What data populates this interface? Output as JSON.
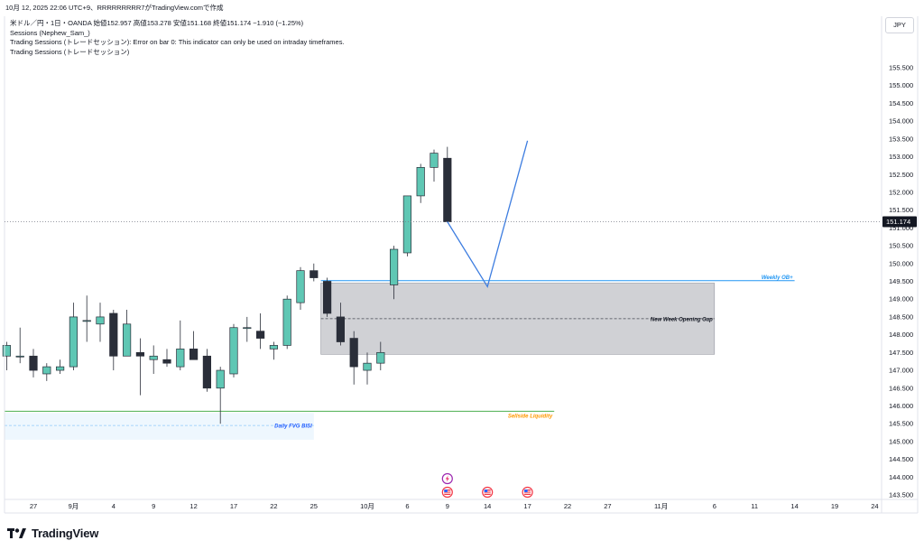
{
  "header": {
    "title": "10月 12, 2025 22:06 UTC+9、RRRRRRRRR7がTradingView.comで作成"
  },
  "info_lines": [
    "米ドル／円・1日・OANDA  始値152.957  高値153.278  安値151.168  終値151.174  −1.910 (−1.25%)",
    "Sessions (Nephew_Sam_)",
    "Trading Sessions (トレードセッション): Error on bar 0: This indicator can only be used on intraday timeframes.",
    "Trading Sessions (トレードセッション)"
  ],
  "currency": "JPY",
  "brand": {
    "name": "TradingView",
    "logo_icon": "tradingview-logo-icon"
  },
  "chart_data": {
    "type": "candlestick",
    "title": "",
    "price_axis": {
      "ylim": [
        143.3,
        156.1
      ],
      "ticks": [
        155.5,
        155.0,
        154.5,
        154.0,
        153.5,
        153.0,
        152.5,
        152.0,
        151.5,
        151.0,
        150.5,
        150.0,
        149.5,
        149.0,
        148.5,
        148.0,
        147.5,
        147.0,
        146.5,
        146.0,
        145.5,
        145.0,
        144.5,
        144.0,
        143.5
      ],
      "tick_labels": [
        "155.500",
        "155.000",
        "154.500",
        "154.000",
        "153.500",
        "153.000",
        "152.500",
        "152.000",
        "151.500",
        "151.000",
        "150.500",
        "150.000",
        "149.500",
        "149.000",
        "148.500",
        "148.000",
        "147.500",
        "147.000",
        "146.500",
        "146.000",
        "145.500",
        "145.000",
        "144.500",
        "144.000",
        "143.500"
      ],
      "last_price": 151.174,
      "last_price_label": "151.174"
    },
    "time_axis": {
      "dates": [
        "2025-08-27",
        "2025-09-01",
        "2025-09-04",
        "2025-09-09",
        "2025-09-12",
        "2025-09-17",
        "2025-09-22",
        "2025-09-25",
        "2025-10-01",
        "2025-10-06",
        "2025-10-09",
        "2025-10-14",
        "2025-10-17",
        "2025-10-22",
        "2025-10-27",
        "2025-11-01",
        "2025-11-06",
        "2025-11-11",
        "2025-11-14",
        "2025-11-19",
        "2025-11-24"
      ],
      "labels": [
        "27",
        "9月",
        "4",
        "9",
        "12",
        "17",
        "22",
        "25",
        "10月",
        "6",
        "9",
        "14",
        "17",
        "22",
        "27",
        "11月",
        "6",
        "11",
        "14",
        "19",
        "24"
      ]
    },
    "candles": [
      {
        "date": "2025-08-22",
        "open": 147.0,
        "high": 148.5,
        "low": 146.9,
        "close": 147.7
      },
      {
        "date": "2025-08-25",
        "open": 147.4,
        "high": 147.8,
        "low": 147.0,
        "close": 147.7
      },
      {
        "date": "2025-08-26",
        "open": 147.4,
        "high": 148.2,
        "low": 147.2,
        "close": 147.4
      },
      {
        "date": "2025-08-27",
        "open": 147.4,
        "high": 147.6,
        "low": 146.8,
        "close": 147.0
      },
      {
        "date": "2025-08-28",
        "open": 146.9,
        "high": 147.2,
        "low": 146.7,
        "close": 147.1
      },
      {
        "date": "2025-08-29",
        "open": 147.0,
        "high": 147.3,
        "low": 146.9,
        "close": 147.1
      },
      {
        "date": "2025-09-01",
        "open": 147.1,
        "high": 148.9,
        "low": 147.0,
        "close": 148.5
      },
      {
        "date": "2025-09-02",
        "open": 148.4,
        "high": 149.1,
        "low": 147.8,
        "close": 148.4
      },
      {
        "date": "2025-09-03",
        "open": 148.3,
        "high": 148.9,
        "low": 147.8,
        "close": 148.5
      },
      {
        "date": "2025-09-04",
        "open": 148.6,
        "high": 148.7,
        "low": 147.0,
        "close": 147.4
      },
      {
        "date": "2025-09-05",
        "open": 147.4,
        "high": 148.7,
        "low": 147.4,
        "close": 148.3
      },
      {
        "date": "2025-09-08",
        "open": 147.5,
        "high": 147.9,
        "low": 146.3,
        "close": 147.4
      },
      {
        "date": "2025-09-09",
        "open": 147.3,
        "high": 147.7,
        "low": 146.9,
        "close": 147.4
      },
      {
        "date": "2025-09-10",
        "open": 147.3,
        "high": 147.6,
        "low": 147.1,
        "close": 147.2
      },
      {
        "date": "2025-09-11",
        "open": 147.1,
        "high": 148.4,
        "low": 147.0,
        "close": 147.6
      },
      {
        "date": "2025-09-12",
        "open": 147.6,
        "high": 148.1,
        "low": 147.3,
        "close": 147.3
      },
      {
        "date": "2025-09-15",
        "open": 147.4,
        "high": 147.6,
        "low": 146.4,
        "close": 146.5
      },
      {
        "date": "2025-09-16",
        "open": 146.5,
        "high": 147.1,
        "low": 145.5,
        "close": 147.0
      },
      {
        "date": "2025-09-17",
        "open": 146.9,
        "high": 148.3,
        "low": 146.8,
        "close": 148.2
      },
      {
        "date": "2025-09-18",
        "open": 148.2,
        "high": 148.5,
        "low": 147.8,
        "close": 148.2
      },
      {
        "date": "2025-09-19",
        "open": 148.1,
        "high": 148.6,
        "low": 147.6,
        "close": 147.9
      },
      {
        "date": "2025-09-22",
        "open": 147.6,
        "high": 147.8,
        "low": 147.3,
        "close": 147.7
      },
      {
        "date": "2025-09-23",
        "open": 147.7,
        "high": 149.1,
        "low": 147.6,
        "close": 149.0
      },
      {
        "date": "2025-09-24",
        "open": 148.9,
        "high": 149.9,
        "low": 148.7,
        "close": 149.8
      },
      {
        "date": "2025-09-25",
        "open": 149.8,
        "high": 150.0,
        "low": 149.5,
        "close": 149.6
      },
      {
        "date": "2025-09-26",
        "open": 149.5,
        "high": 149.6,
        "low": 148.5,
        "close": 148.6
      },
      {
        "date": "2025-09-29",
        "open": 148.5,
        "high": 148.9,
        "low": 147.7,
        "close": 147.8
      },
      {
        "date": "2025-09-30",
        "open": 147.9,
        "high": 148.1,
        "low": 146.6,
        "close": 147.1
      },
      {
        "date": "2025-10-01",
        "open": 147.0,
        "high": 147.5,
        "low": 146.6,
        "close": 147.2
      },
      {
        "date": "2025-10-02",
        "open": 147.2,
        "high": 147.8,
        "low": 147.0,
        "close": 147.5
      },
      {
        "date": "2025-10-03",
        "open": 149.4,
        "high": 150.5,
        "low": 149.0,
        "close": 150.4
      },
      {
        "date": "2025-10-06",
        "open": 150.3,
        "high": 151.9,
        "low": 150.2,
        "close": 151.9
      },
      {
        "date": "2025-10-07",
        "open": 151.9,
        "high": 152.8,
        "low": 151.7,
        "close": 152.7
      },
      {
        "date": "2025-10-08",
        "open": 152.7,
        "high": 153.2,
        "low": 152.3,
        "close": 153.1
      },
      {
        "date": "2025-10-09",
        "open": 152.957,
        "high": 153.278,
        "low": 151.168,
        "close": 151.174
      }
    ],
    "zones": [
      {
        "name": "New Week Opening Gap",
        "top": 149.45,
        "bottom": 147.45,
        "dashed_mid": 148.45,
        "start": "2025-09-26",
        "end": "2025-11-06"
      },
      {
        "name": "Daily FVG BISI",
        "top": 145.8,
        "bottom": 145.05,
        "dashed_mid": 145.45,
        "start": "2025-08-21",
        "end": "2025-09-25"
      }
    ],
    "levels": [
      {
        "name": "Weekly OB+",
        "price": 149.52,
        "color": "#2196f3",
        "start": "2025-09-26",
        "end": "2025-11-16"
      },
      {
        "name": "Sellside Liquidity",
        "price": 145.85,
        "color": "#4caf50",
        "start": "2025-08-21",
        "end": "2025-10-21"
      }
    ],
    "projection": [
      {
        "date": "2025-10-09",
        "price": 151.174
      },
      {
        "date": "2025-10-14",
        "price": 149.35
      },
      {
        "date": "2025-10-17",
        "price": 153.45
      }
    ],
    "event_icons": [
      "flash-event-icon",
      "us-flag-event-icon",
      "us-flag-event-icon",
      "us-flag-event-icon"
    ]
  }
}
